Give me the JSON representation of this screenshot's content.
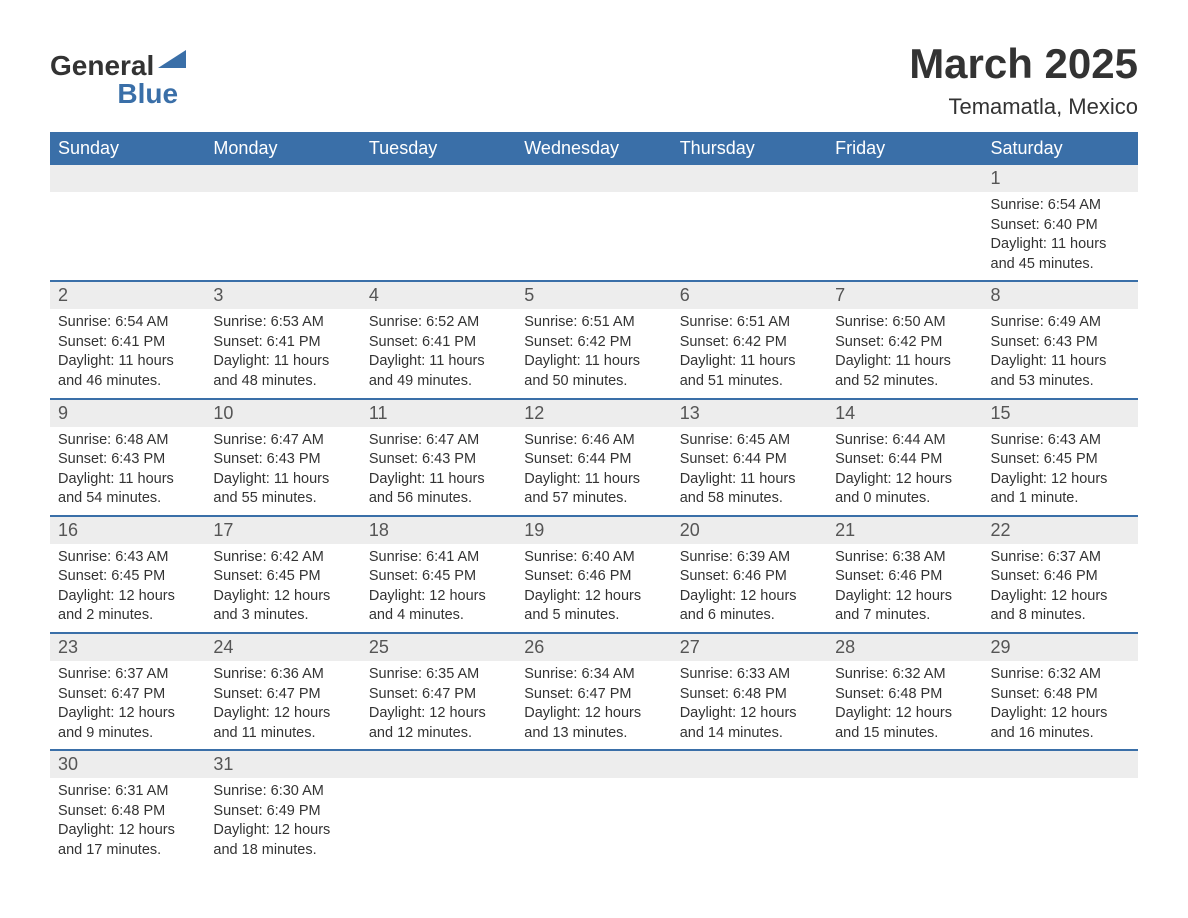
{
  "logo": {
    "line1": "General",
    "line2": "Blue"
  },
  "title": "March 2025",
  "subtitle": "Temamatla, Mexico",
  "colors": {
    "header_bg": "#3a6fa8",
    "daynum_bg": "#ededed",
    "border": "#3a6fa8",
    "text": "#333333",
    "header_text": "#ffffff"
  },
  "weekdays": [
    "Sunday",
    "Monday",
    "Tuesday",
    "Wednesday",
    "Thursday",
    "Friday",
    "Saturday"
  ],
  "weeks": [
    [
      null,
      null,
      null,
      null,
      null,
      null,
      {
        "n": "1",
        "sunrise": "6:54 AM",
        "sunset": "6:40 PM",
        "daylight": "11 hours and 45 minutes."
      }
    ],
    [
      {
        "n": "2",
        "sunrise": "6:54 AM",
        "sunset": "6:41 PM",
        "daylight": "11 hours and 46 minutes."
      },
      {
        "n": "3",
        "sunrise": "6:53 AM",
        "sunset": "6:41 PM",
        "daylight": "11 hours and 48 minutes."
      },
      {
        "n": "4",
        "sunrise": "6:52 AM",
        "sunset": "6:41 PM",
        "daylight": "11 hours and 49 minutes."
      },
      {
        "n": "5",
        "sunrise": "6:51 AM",
        "sunset": "6:42 PM",
        "daylight": "11 hours and 50 minutes."
      },
      {
        "n": "6",
        "sunrise": "6:51 AM",
        "sunset": "6:42 PM",
        "daylight": "11 hours and 51 minutes."
      },
      {
        "n": "7",
        "sunrise": "6:50 AM",
        "sunset": "6:42 PM",
        "daylight": "11 hours and 52 minutes."
      },
      {
        "n": "8",
        "sunrise": "6:49 AM",
        "sunset": "6:43 PM",
        "daylight": "11 hours and 53 minutes."
      }
    ],
    [
      {
        "n": "9",
        "sunrise": "6:48 AM",
        "sunset": "6:43 PM",
        "daylight": "11 hours and 54 minutes."
      },
      {
        "n": "10",
        "sunrise": "6:47 AM",
        "sunset": "6:43 PM",
        "daylight": "11 hours and 55 minutes."
      },
      {
        "n": "11",
        "sunrise": "6:47 AM",
        "sunset": "6:43 PM",
        "daylight": "11 hours and 56 minutes."
      },
      {
        "n": "12",
        "sunrise": "6:46 AM",
        "sunset": "6:44 PM",
        "daylight": "11 hours and 57 minutes."
      },
      {
        "n": "13",
        "sunrise": "6:45 AM",
        "sunset": "6:44 PM",
        "daylight": "11 hours and 58 minutes."
      },
      {
        "n": "14",
        "sunrise": "6:44 AM",
        "sunset": "6:44 PM",
        "daylight": "12 hours and 0 minutes."
      },
      {
        "n": "15",
        "sunrise": "6:43 AM",
        "sunset": "6:45 PM",
        "daylight": "12 hours and 1 minute."
      }
    ],
    [
      {
        "n": "16",
        "sunrise": "6:43 AM",
        "sunset": "6:45 PM",
        "daylight": "12 hours and 2 minutes."
      },
      {
        "n": "17",
        "sunrise": "6:42 AM",
        "sunset": "6:45 PM",
        "daylight": "12 hours and 3 minutes."
      },
      {
        "n": "18",
        "sunrise": "6:41 AM",
        "sunset": "6:45 PM",
        "daylight": "12 hours and 4 minutes."
      },
      {
        "n": "19",
        "sunrise": "6:40 AM",
        "sunset": "6:46 PM",
        "daylight": "12 hours and 5 minutes."
      },
      {
        "n": "20",
        "sunrise": "6:39 AM",
        "sunset": "6:46 PM",
        "daylight": "12 hours and 6 minutes."
      },
      {
        "n": "21",
        "sunrise": "6:38 AM",
        "sunset": "6:46 PM",
        "daylight": "12 hours and 7 minutes."
      },
      {
        "n": "22",
        "sunrise": "6:37 AM",
        "sunset": "6:46 PM",
        "daylight": "12 hours and 8 minutes."
      }
    ],
    [
      {
        "n": "23",
        "sunrise": "6:37 AM",
        "sunset": "6:47 PM",
        "daylight": "12 hours and 9 minutes."
      },
      {
        "n": "24",
        "sunrise": "6:36 AM",
        "sunset": "6:47 PM",
        "daylight": "12 hours and 11 minutes."
      },
      {
        "n": "25",
        "sunrise": "6:35 AM",
        "sunset": "6:47 PM",
        "daylight": "12 hours and 12 minutes."
      },
      {
        "n": "26",
        "sunrise": "6:34 AM",
        "sunset": "6:47 PM",
        "daylight": "12 hours and 13 minutes."
      },
      {
        "n": "27",
        "sunrise": "6:33 AM",
        "sunset": "6:48 PM",
        "daylight": "12 hours and 14 minutes."
      },
      {
        "n": "28",
        "sunrise": "6:32 AM",
        "sunset": "6:48 PM",
        "daylight": "12 hours and 15 minutes."
      },
      {
        "n": "29",
        "sunrise": "6:32 AM",
        "sunset": "6:48 PM",
        "daylight": "12 hours and 16 minutes."
      }
    ],
    [
      {
        "n": "30",
        "sunrise": "6:31 AM",
        "sunset": "6:48 PM",
        "daylight": "12 hours and 17 minutes."
      },
      {
        "n": "31",
        "sunrise": "6:30 AM",
        "sunset": "6:49 PM",
        "daylight": "12 hours and 18 minutes."
      },
      null,
      null,
      null,
      null,
      null
    ]
  ],
  "labels": {
    "sunrise": "Sunrise: ",
    "sunset": "Sunset: ",
    "daylight": "Daylight: "
  }
}
